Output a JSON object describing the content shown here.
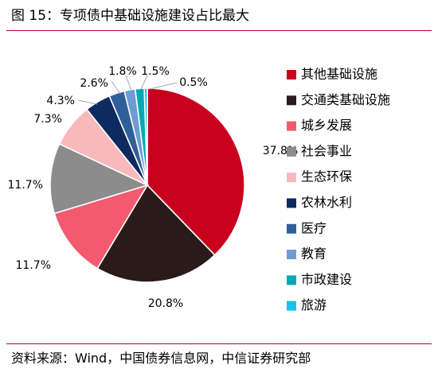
{
  "figure": {
    "title": "图 15：专项债中基础设施建设占比最大",
    "source": "资料来源：Wind，中国债券信息网，中信证券研究部"
  },
  "chart_data": {
    "type": "pie",
    "title": "图 15：专项债中基础设施建设占比最大",
    "legend_position": "right",
    "slices": [
      {
        "name": "其他基础设施",
        "value": 37.8,
        "label": "37.8%",
        "color": "#c8001e"
      },
      {
        "name": "交通类基础设施",
        "value": 20.8,
        "label": "20.8%",
        "color": "#2b1a1a"
      },
      {
        "name": "城乡发展",
        "value": 11.7,
        "label": "11.7%",
        "color": "#f25a6f"
      },
      {
        "name": "社会事业",
        "value": 11.7,
        "label": "11.7%",
        "color": "#8c8c8c"
      },
      {
        "name": "生态环保",
        "value": 7.3,
        "label": "7.3%",
        "color": "#f8b9bd"
      },
      {
        "name": "农林水利",
        "value": 4.3,
        "label": "4.3%",
        "color": "#0d2b5e"
      },
      {
        "name": "医疗",
        "value": 2.6,
        "label": "2.6%",
        "color": "#2f5f99"
      },
      {
        "name": "教育",
        "value": 1.8,
        "label": "1.8%",
        "color": "#6e9bd3"
      },
      {
        "name": "市政建设",
        "value": 1.5,
        "label": "1.5%",
        "color": "#00aab4"
      },
      {
        "name": "旅游",
        "value": 0.5,
        "label": "0.5%",
        "color": "#15c2e8"
      }
    ]
  }
}
